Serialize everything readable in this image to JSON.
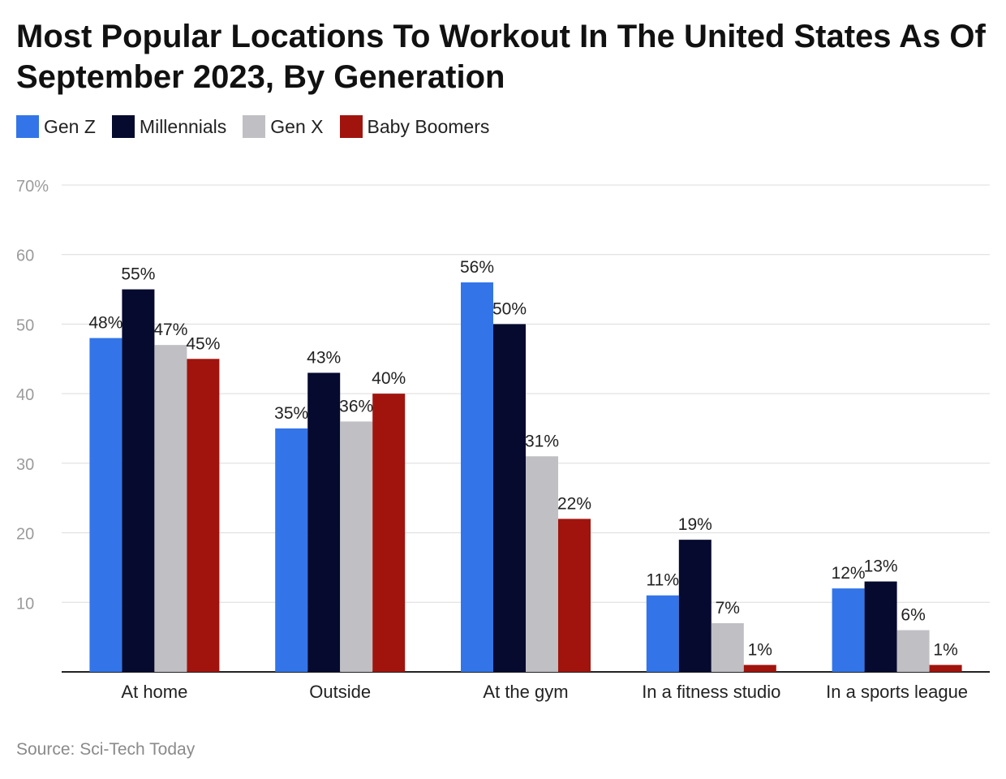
{
  "title": "Most Popular Locations To Workout In The United States As Of September 2023, By Generation",
  "source": "Source: Sci-Tech Today",
  "chart_data": {
    "type": "bar",
    "title": "Most Popular Locations To Workout In The United States As Of September 2023, By Generation",
    "xlabel": "",
    "ylabel": "",
    "ylim": [
      0,
      70
    ],
    "yticks": [
      10,
      20,
      30,
      40,
      50,
      60,
      70
    ],
    "ytick_labels": [
      "10",
      "20",
      "30",
      "40",
      "50",
      "60",
      "70%"
    ],
    "grid": true,
    "legend_position": "top-left",
    "categories": [
      "At home",
      "Outside",
      "At the gym",
      "In a fitness studio",
      "In a sports league"
    ],
    "series": [
      {
        "name": "Gen Z",
        "color": "#3375e8",
        "values": [
          48,
          35,
          56,
          11,
          12
        ],
        "labels": [
          "48%",
          "35%",
          "56%",
          "11%",
          "12%"
        ]
      },
      {
        "name": "Millennials",
        "color": "#050a2e",
        "values": [
          55,
          43,
          50,
          19,
          13
        ],
        "labels": [
          "55%",
          "43%",
          "50%",
          "19%",
          "13%"
        ]
      },
      {
        "name": "Gen X",
        "color": "#c0bfc4",
        "values": [
          47,
          36,
          31,
          7,
          6
        ],
        "labels": [
          "47%",
          "36%",
          "31%",
          "7%",
          "6%"
        ]
      },
      {
        "name": "Baby Boomers",
        "color": "#a1140e",
        "values": [
          45,
          40,
          22,
          1,
          1
        ],
        "labels": [
          "45%",
          "40%",
          "22%",
          "1%",
          "1%"
        ]
      }
    ]
  }
}
